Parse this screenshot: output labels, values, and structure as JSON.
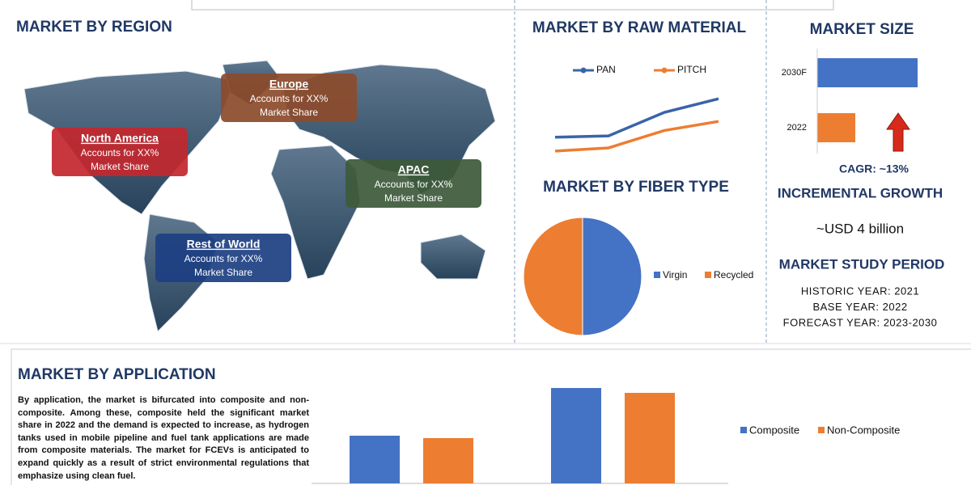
{
  "region": {
    "title": "MARKET BY REGION",
    "callouts": [
      {
        "name": "Europe",
        "line1": "Accounts for XX%",
        "line2": "Market Share",
        "color": "#8c4b2c"
      },
      {
        "name": "North America",
        "line1": "Accounts for XX%",
        "line2": "Market Share",
        "color": "#c3282e"
      },
      {
        "name": "APAC",
        "line1": "Accounts for XX%",
        "line2": "Market Share",
        "color": "#3d5a3a"
      },
      {
        "name": "Rest of World",
        "line1": "Accounts for XX%",
        "line2": "Market Share",
        "color": "#1e3f82"
      }
    ]
  },
  "chart_data": [
    {
      "type": "line",
      "title": "MARKET BY RAW MATERIAL",
      "categories": [
        null,
        null,
        null,
        null
      ],
      "series": [
        {
          "name": "PAN",
          "color": "#3a64a8",
          "values": [
            9,
            9.6,
            20,
            26
          ]
        },
        {
          "name": "PITCH",
          "color": "#ed7d31",
          "values": [
            2.9,
            4.3,
            12,
            16
          ]
        }
      ]
    },
    {
      "type": "pie",
      "title": "MARKET BY FIBER TYPE",
      "categories": [
        "Virgin",
        "Recycled"
      ],
      "values": [
        50,
        50
      ],
      "colors": [
        "#4472c4",
        "#ed7d31"
      ]
    },
    {
      "type": "bar",
      "title": "MARKET SIZE",
      "orientation": "horizontal",
      "categories": [
        "2030F",
        "2022"
      ],
      "values": [
        124,
        47
      ],
      "colors": [
        "#4472c4",
        "#ed7d31"
      ]
    },
    {
      "type": "bar",
      "title": "MARKET BY APPLICATION",
      "categories": [
        null,
        null
      ],
      "series": [
        {
          "name": "Composite",
          "color": "#4472c4",
          "values": [
            59,
            118
          ]
        },
        {
          "name": "Non-Composite",
          "color": "#ed7d31",
          "values": [
            56,
            112
          ]
        }
      ]
    }
  ],
  "growth": {
    "cagr": "CAGR:  ~13%",
    "title": "INCREMENTAL GROWTH",
    "value": "~USD 4 billion"
  },
  "study": {
    "title": "MARKET STUDY PERIOD",
    "lines": [
      "HISTORIC YEAR: 2021",
      "BASE YEAR: 2022",
      "FORECAST YEAR: 2023-2030"
    ]
  },
  "application": {
    "paragraph": "By application, the market is bifurcated into composite and non-composite. Among these, composite held the significant market share in 2022 and the demand is expected to increase, as hydrogen tanks used in mobile pipeline and fuel tank applications are made from composite materials. The market for FCEVs is anticipated to expand quickly as a result of strict environmental regulations that emphasize using clean fuel."
  }
}
